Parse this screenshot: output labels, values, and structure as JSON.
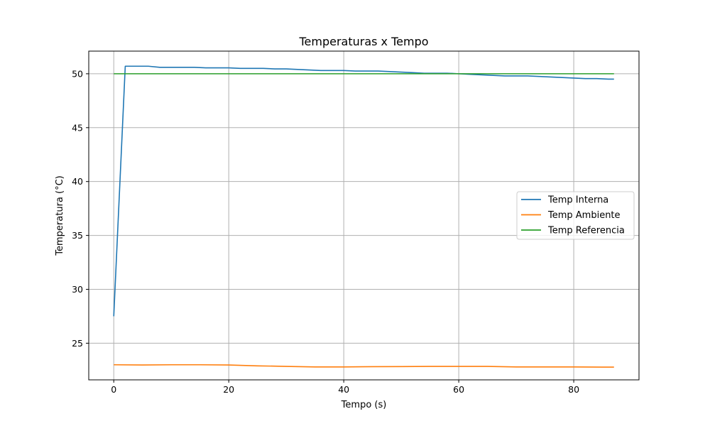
{
  "chart_data": {
    "type": "line",
    "title": "Temperaturas x Tempo",
    "xlabel": "Tempo (s)",
    "ylabel": "Temperatura (°C)",
    "xlim": [
      -4.35,
      91.35
    ],
    "ylim": [
      21.6,
      52.1
    ],
    "xticks": [
      0,
      20,
      40,
      60,
      80
    ],
    "yticks": [
      25,
      30,
      35,
      40,
      45,
      50
    ],
    "grid": true,
    "legend_position": "center-right",
    "series": [
      {
        "name": "Temp Interna",
        "color": "#1f77b4",
        "x": [
          0,
          2,
          4,
          6,
          8,
          10,
          12,
          14,
          16,
          18,
          20,
          22,
          24,
          26,
          28,
          30,
          32,
          34,
          36,
          38,
          40,
          42,
          44,
          46,
          48,
          50,
          52,
          54,
          56,
          58,
          60,
          62,
          64,
          66,
          68,
          70,
          72,
          74,
          76,
          78,
          80,
          82,
          84,
          86,
          87
        ],
        "y": [
          27.5,
          50.7,
          50.7,
          50.7,
          50.6,
          50.6,
          50.6,
          50.6,
          50.55,
          50.55,
          50.55,
          50.5,
          50.5,
          50.5,
          50.45,
          50.45,
          50.4,
          50.35,
          50.3,
          50.3,
          50.3,
          50.25,
          50.25,
          50.25,
          50.2,
          50.15,
          50.1,
          50.05,
          50.05,
          50.05,
          50.0,
          49.95,
          49.9,
          49.85,
          49.8,
          49.8,
          49.8,
          49.75,
          49.7,
          49.65,
          49.6,
          49.55,
          49.55,
          49.5,
          49.5
        ]
      },
      {
        "name": "Temp Ambiente",
        "color": "#ff7f0e",
        "x": [
          0,
          5,
          10,
          15,
          20,
          25,
          30,
          35,
          40,
          45,
          50,
          55,
          60,
          65,
          70,
          75,
          80,
          85,
          87
        ],
        "y": [
          23.0,
          22.98,
          23.0,
          23.0,
          22.98,
          22.9,
          22.85,
          22.8,
          22.8,
          22.82,
          22.83,
          22.85,
          22.85,
          22.85,
          22.8,
          22.8,
          22.8,
          22.78,
          22.78
        ]
      },
      {
        "name": "Temp Referencia",
        "color": "#2ca02c",
        "x": [
          0,
          87
        ],
        "y": [
          50,
          50
        ]
      }
    ]
  }
}
